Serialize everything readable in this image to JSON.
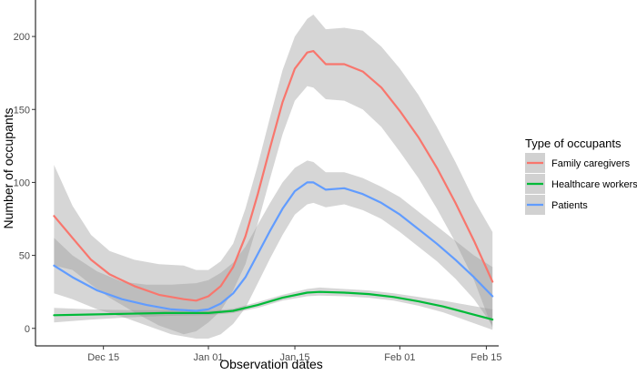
{
  "chart_data": {
    "type": "line",
    "xlabel": "Observation dates",
    "ylabel": "Number of occupants",
    "x_ticks": [
      "2023-12-15",
      "2024-01-01",
      "2024-01-15",
      "2024-02-01",
      "2024-02-15"
    ],
    "x_tick_labels": [
      "Dec 15",
      "Jan 01",
      "Jan 15",
      "Feb 01",
      "Feb 15"
    ],
    "y_ticks": [
      0,
      50,
      100,
      150,
      200
    ],
    "xlim": [
      "2023-12-04",
      "2024-02-17"
    ],
    "ylim": [
      -12,
      225
    ],
    "grid": false,
    "ribbons": "grey confidence band around each line",
    "legend": {
      "title": "Type of occupants",
      "position": "right"
    },
    "series": [
      {
        "name": "Family caregivers",
        "color": "#F8766D",
        "points": [
          [
            "2023-12-07",
            77
          ],
          [
            "2023-12-10",
            62
          ],
          [
            "2023-12-13",
            47
          ],
          [
            "2023-12-16",
            37
          ],
          [
            "2023-12-20",
            29
          ],
          [
            "2023-12-24",
            23
          ],
          [
            "2023-12-28",
            20
          ],
          [
            "2023-12-30",
            19
          ],
          [
            "2024-01-01",
            22
          ],
          [
            "2024-01-03",
            29
          ],
          [
            "2024-01-05",
            42
          ],
          [
            "2024-01-07",
            63
          ],
          [
            "2024-01-09",
            92
          ],
          [
            "2024-01-11",
            124
          ],
          [
            "2024-01-13",
            155
          ],
          [
            "2024-01-15",
            178
          ],
          [
            "2024-01-17",
            189
          ],
          [
            "2024-01-18",
            190
          ],
          [
            "2024-01-20",
            181
          ],
          [
            "2024-01-23",
            181
          ],
          [
            "2024-01-26",
            176
          ],
          [
            "2024-01-29",
            165
          ],
          [
            "2024-02-01",
            149
          ],
          [
            "2024-02-04",
            131
          ],
          [
            "2024-02-07",
            110
          ],
          [
            "2024-02-10",
            86
          ],
          [
            "2024-02-13",
            60
          ],
          [
            "2024-02-16",
            32
          ]
        ],
        "band": {
          "upper": [
            112,
            84,
            64,
            53,
            47,
            44,
            43,
            40,
            40,
            46,
            58,
            82,
            112,
            145,
            177,
            200,
            212,
            215,
            205,
            206,
            204,
            193,
            178,
            160,
            138,
            114,
            88,
            66
          ],
          "lower": [
            43,
            40,
            30,
            21,
            11,
            2,
            -4,
            -2,
            4,
            12,
            26,
            44,
            72,
            103,
            133,
            156,
            166,
            165,
            157,
            156,
            150,
            138,
            121,
            103,
            82,
            59,
            33,
            0
          ]
        }
      },
      {
        "name": "Healthcare workers",
        "color": "#00BA38",
        "points": [
          [
            "2023-12-07",
            9
          ],
          [
            "2023-12-13",
            9.5
          ],
          [
            "2023-12-19",
            10
          ],
          [
            "2023-12-25",
            10.5
          ],
          [
            "2024-01-01",
            10.5
          ],
          [
            "2024-01-05",
            12
          ],
          [
            "2024-01-09",
            16
          ],
          [
            "2024-01-13",
            21
          ],
          [
            "2024-01-17",
            24.5
          ],
          [
            "2024-01-19",
            25
          ],
          [
            "2024-01-23",
            24.5
          ],
          [
            "2024-01-27",
            23.5
          ],
          [
            "2024-01-31",
            21.5
          ],
          [
            "2024-02-04",
            18.5
          ],
          [
            "2024-02-08",
            15
          ],
          [
            "2024-02-12",
            10.5
          ],
          [
            "2024-02-16",
            6
          ]
        ],
        "band": {
          "upper": [
            14,
            13,
            12.5,
            12.5,
            12,
            13.5,
            18,
            23,
            27,
            28,
            27,
            26,
            24,
            21.5,
            19,
            16,
            13
          ],
          "lower": [
            4,
            6,
            7.5,
            8.5,
            9,
            10.5,
            14,
            19,
            22,
            22.5,
            22,
            21,
            19,
            15.5,
            11,
            5,
            -1
          ]
        }
      },
      {
        "name": "Patients",
        "color": "#619CFF",
        "points": [
          [
            "2023-12-07",
            43
          ],
          [
            "2023-12-10",
            35
          ],
          [
            "2023-12-14",
            26
          ],
          [
            "2023-12-18",
            20
          ],
          [
            "2023-12-22",
            16
          ],
          [
            "2023-12-26",
            13
          ],
          [
            "2023-12-30",
            12
          ],
          [
            "2024-01-01",
            13
          ],
          [
            "2024-01-03",
            17
          ],
          [
            "2024-01-05",
            24
          ],
          [
            "2024-01-07",
            35
          ],
          [
            "2024-01-09",
            51
          ],
          [
            "2024-01-11",
            67
          ],
          [
            "2024-01-13",
            82
          ],
          [
            "2024-01-15",
            94
          ],
          [
            "2024-01-17",
            100
          ],
          [
            "2024-01-18",
            100
          ],
          [
            "2024-01-20",
            95
          ],
          [
            "2024-01-23",
            96
          ],
          [
            "2024-01-26",
            92
          ],
          [
            "2024-01-29",
            86
          ],
          [
            "2024-02-01",
            78
          ],
          [
            "2024-02-04",
            68
          ],
          [
            "2024-02-07",
            58
          ],
          [
            "2024-02-10",
            47
          ],
          [
            "2024-02-13",
            35
          ],
          [
            "2024-02-16",
            22
          ]
        ],
        "band": {
          "upper": [
            62,
            50,
            39,
            32,
            30,
            30,
            31,
            33,
            38,
            45,
            56,
            71,
            86,
            100,
            110,
            115,
            114,
            107,
            107,
            103,
            97,
            90,
            80,
            70,
            60,
            50,
            42
          ],
          "lower": [
            24,
            20,
            13,
            8,
            2,
            -4,
            -7,
            -7,
            -4,
            3,
            14,
            31,
            48,
            64,
            78,
            85,
            86,
            83,
            85,
            81,
            75,
            66,
            56,
            46,
            34,
            20,
            2
          ]
        }
      }
    ]
  }
}
